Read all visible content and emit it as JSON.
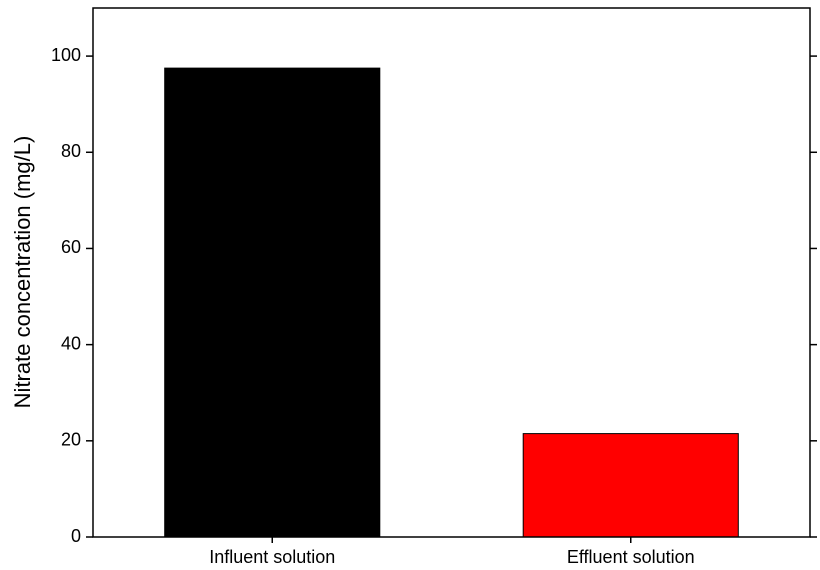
{
  "chart_data": {
    "type": "bar",
    "y_label": "Nitrate concentration (mg/L)",
    "categories": [
      "Influent solution",
      "Effluent solution"
    ],
    "values": [
      97.5,
      21.5
    ],
    "colors": [
      "#000000",
      "#ff0000"
    ],
    "ylim": [
      0,
      110
    ],
    "yticks": [
      0,
      20,
      40,
      60,
      80,
      100
    ],
    "grid": false
  }
}
